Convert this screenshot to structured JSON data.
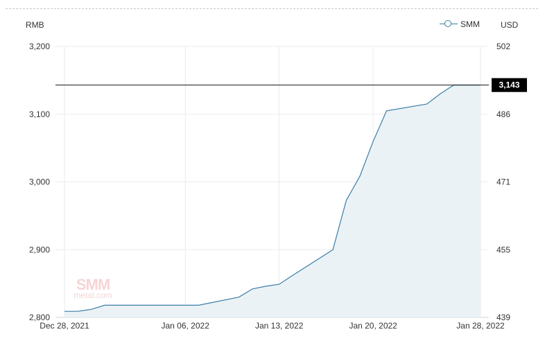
{
  "chart_data": {
    "type": "area",
    "left_axis_unit": "RMB",
    "right_axis_unit": "USD",
    "legend": {
      "label": "SMM",
      "position": "top-right"
    },
    "series": [
      {
        "name": "SMM",
        "x": [
          "2021-12-28",
          "2021-12-29",
          "2021-12-30",
          "2021-12-31",
          "2022-01-04",
          "2022-01-05",
          "2022-01-06",
          "2022-01-07",
          "2022-01-10",
          "2022-01-11",
          "2022-01-12",
          "2022-01-13",
          "2022-01-14",
          "2022-01-17",
          "2022-01-18",
          "2022-01-19",
          "2022-01-20",
          "2022-01-21",
          "2022-01-24",
          "2022-01-25",
          "2022-01-26",
          "2022-01-27",
          "2022-01-28"
        ],
        "values": [
          2809,
          2809,
          2812,
          2818,
          2818,
          2818,
          2818,
          2818,
          2830,
          2842,
          2846,
          2849,
          2862,
          2900,
          2973,
          3008,
          3060,
          3105,
          3115,
          3130,
          3143,
          3143,
          3143
        ]
      }
    ],
    "x_ticks": [
      "Dec 28, 2021",
      "Jan 06, 2022",
      "Jan 13, 2022",
      "Jan 20, 2022",
      "Jan 28, 2022"
    ],
    "y_left_ticks": [
      2800,
      2900,
      3000,
      3100,
      3200
    ],
    "y_left_tick_labels": [
      "2,800",
      "2,900",
      "3,000",
      "3,100",
      "3,200"
    ],
    "y_right_tick_labels": [
      "439",
      "455",
      "471",
      "486",
      "502"
    ],
    "ylim": [
      2800,
      3200
    ],
    "grid": true,
    "current_value": 3143,
    "current_value_label": "3,143",
    "colors": {
      "line": "#3a7ca5",
      "area": "#eaf2f6",
      "grid": "#ebebeb",
      "marker_line": "#111111",
      "label_bg": "#000000",
      "label_fg": "#ffffff"
    },
    "watermark": {
      "brand": "SMM",
      "sub": "metal.com"
    }
  }
}
